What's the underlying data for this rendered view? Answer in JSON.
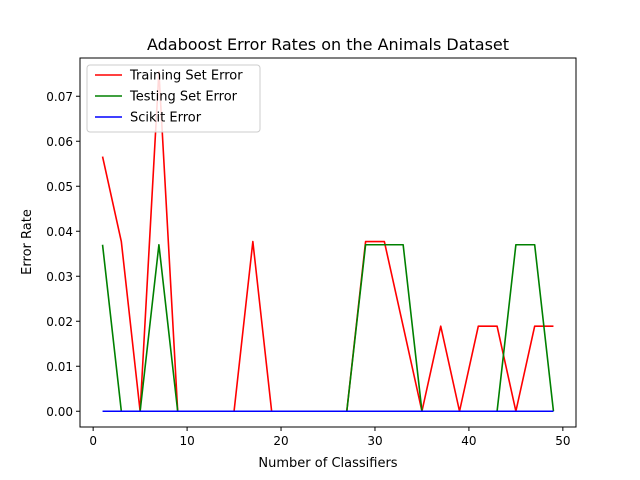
{
  "chart_data": {
    "type": "line",
    "title": "Adaboost Error Rates on the Animals Dataset",
    "xlabel": "Number of Classifiers",
    "ylabel": "Error Rate",
    "xlim": [
      -1.4,
      51.4
    ],
    "ylim": [
      -0.0035,
      0.0785
    ],
    "xticks": [
      0,
      10,
      20,
      30,
      40,
      50
    ],
    "yticks": [
      0.0,
      0.01,
      0.02,
      0.03,
      0.04,
      0.05,
      0.06,
      0.07
    ],
    "xtick_labels": [
      "0",
      "10",
      "20",
      "30",
      "40",
      "50"
    ],
    "ytick_labels": [
      "0.00",
      "0.01",
      "0.02",
      "0.03",
      "0.04",
      "0.05",
      "0.06",
      "0.07"
    ],
    "grid": false,
    "legend_position": "top-left",
    "x": [
      1,
      3,
      5,
      7,
      9,
      11,
      13,
      15,
      17,
      19,
      21,
      23,
      25,
      27,
      29,
      31,
      33,
      35,
      37,
      39,
      41,
      43,
      45,
      47,
      49
    ],
    "series": [
      {
        "name": "Training Set Error",
        "color": "#ff0000",
        "values": [
          0.0566,
          0.0377,
          0.0,
          0.0755,
          0.0,
          0.0,
          0.0,
          0.0,
          0.0377,
          0.0,
          0.0,
          0.0,
          0.0,
          0.0,
          0.0377,
          0.0377,
          0.0189,
          0.0,
          0.0189,
          0.0,
          0.0189,
          0.0189,
          0.0,
          0.0189,
          0.0189
        ]
      },
      {
        "name": "Testing Set Error",
        "color": "#008000",
        "values": [
          0.037,
          0.0,
          0.0,
          0.037,
          0.0,
          0.0,
          0.0,
          0.0,
          0.0,
          0.0,
          0.0,
          0.0,
          0.0,
          0.0,
          0.037,
          0.037,
          0.037,
          0.0,
          0.0,
          0.0,
          0.0,
          0.0,
          0.037,
          0.037,
          0.0
        ]
      },
      {
        "name": "Scikit Error",
        "color": "#0000ff",
        "values": [
          0.0,
          0.0,
          0.0,
          0.0,
          0.0,
          0.0,
          0.0,
          0.0,
          0.0,
          0.0,
          0.0,
          0.0,
          0.0,
          0.0,
          0.0,
          0.0,
          0.0,
          0.0,
          0.0,
          0.0,
          0.0,
          0.0,
          0.0,
          0.0,
          0.0
        ]
      }
    ]
  }
}
